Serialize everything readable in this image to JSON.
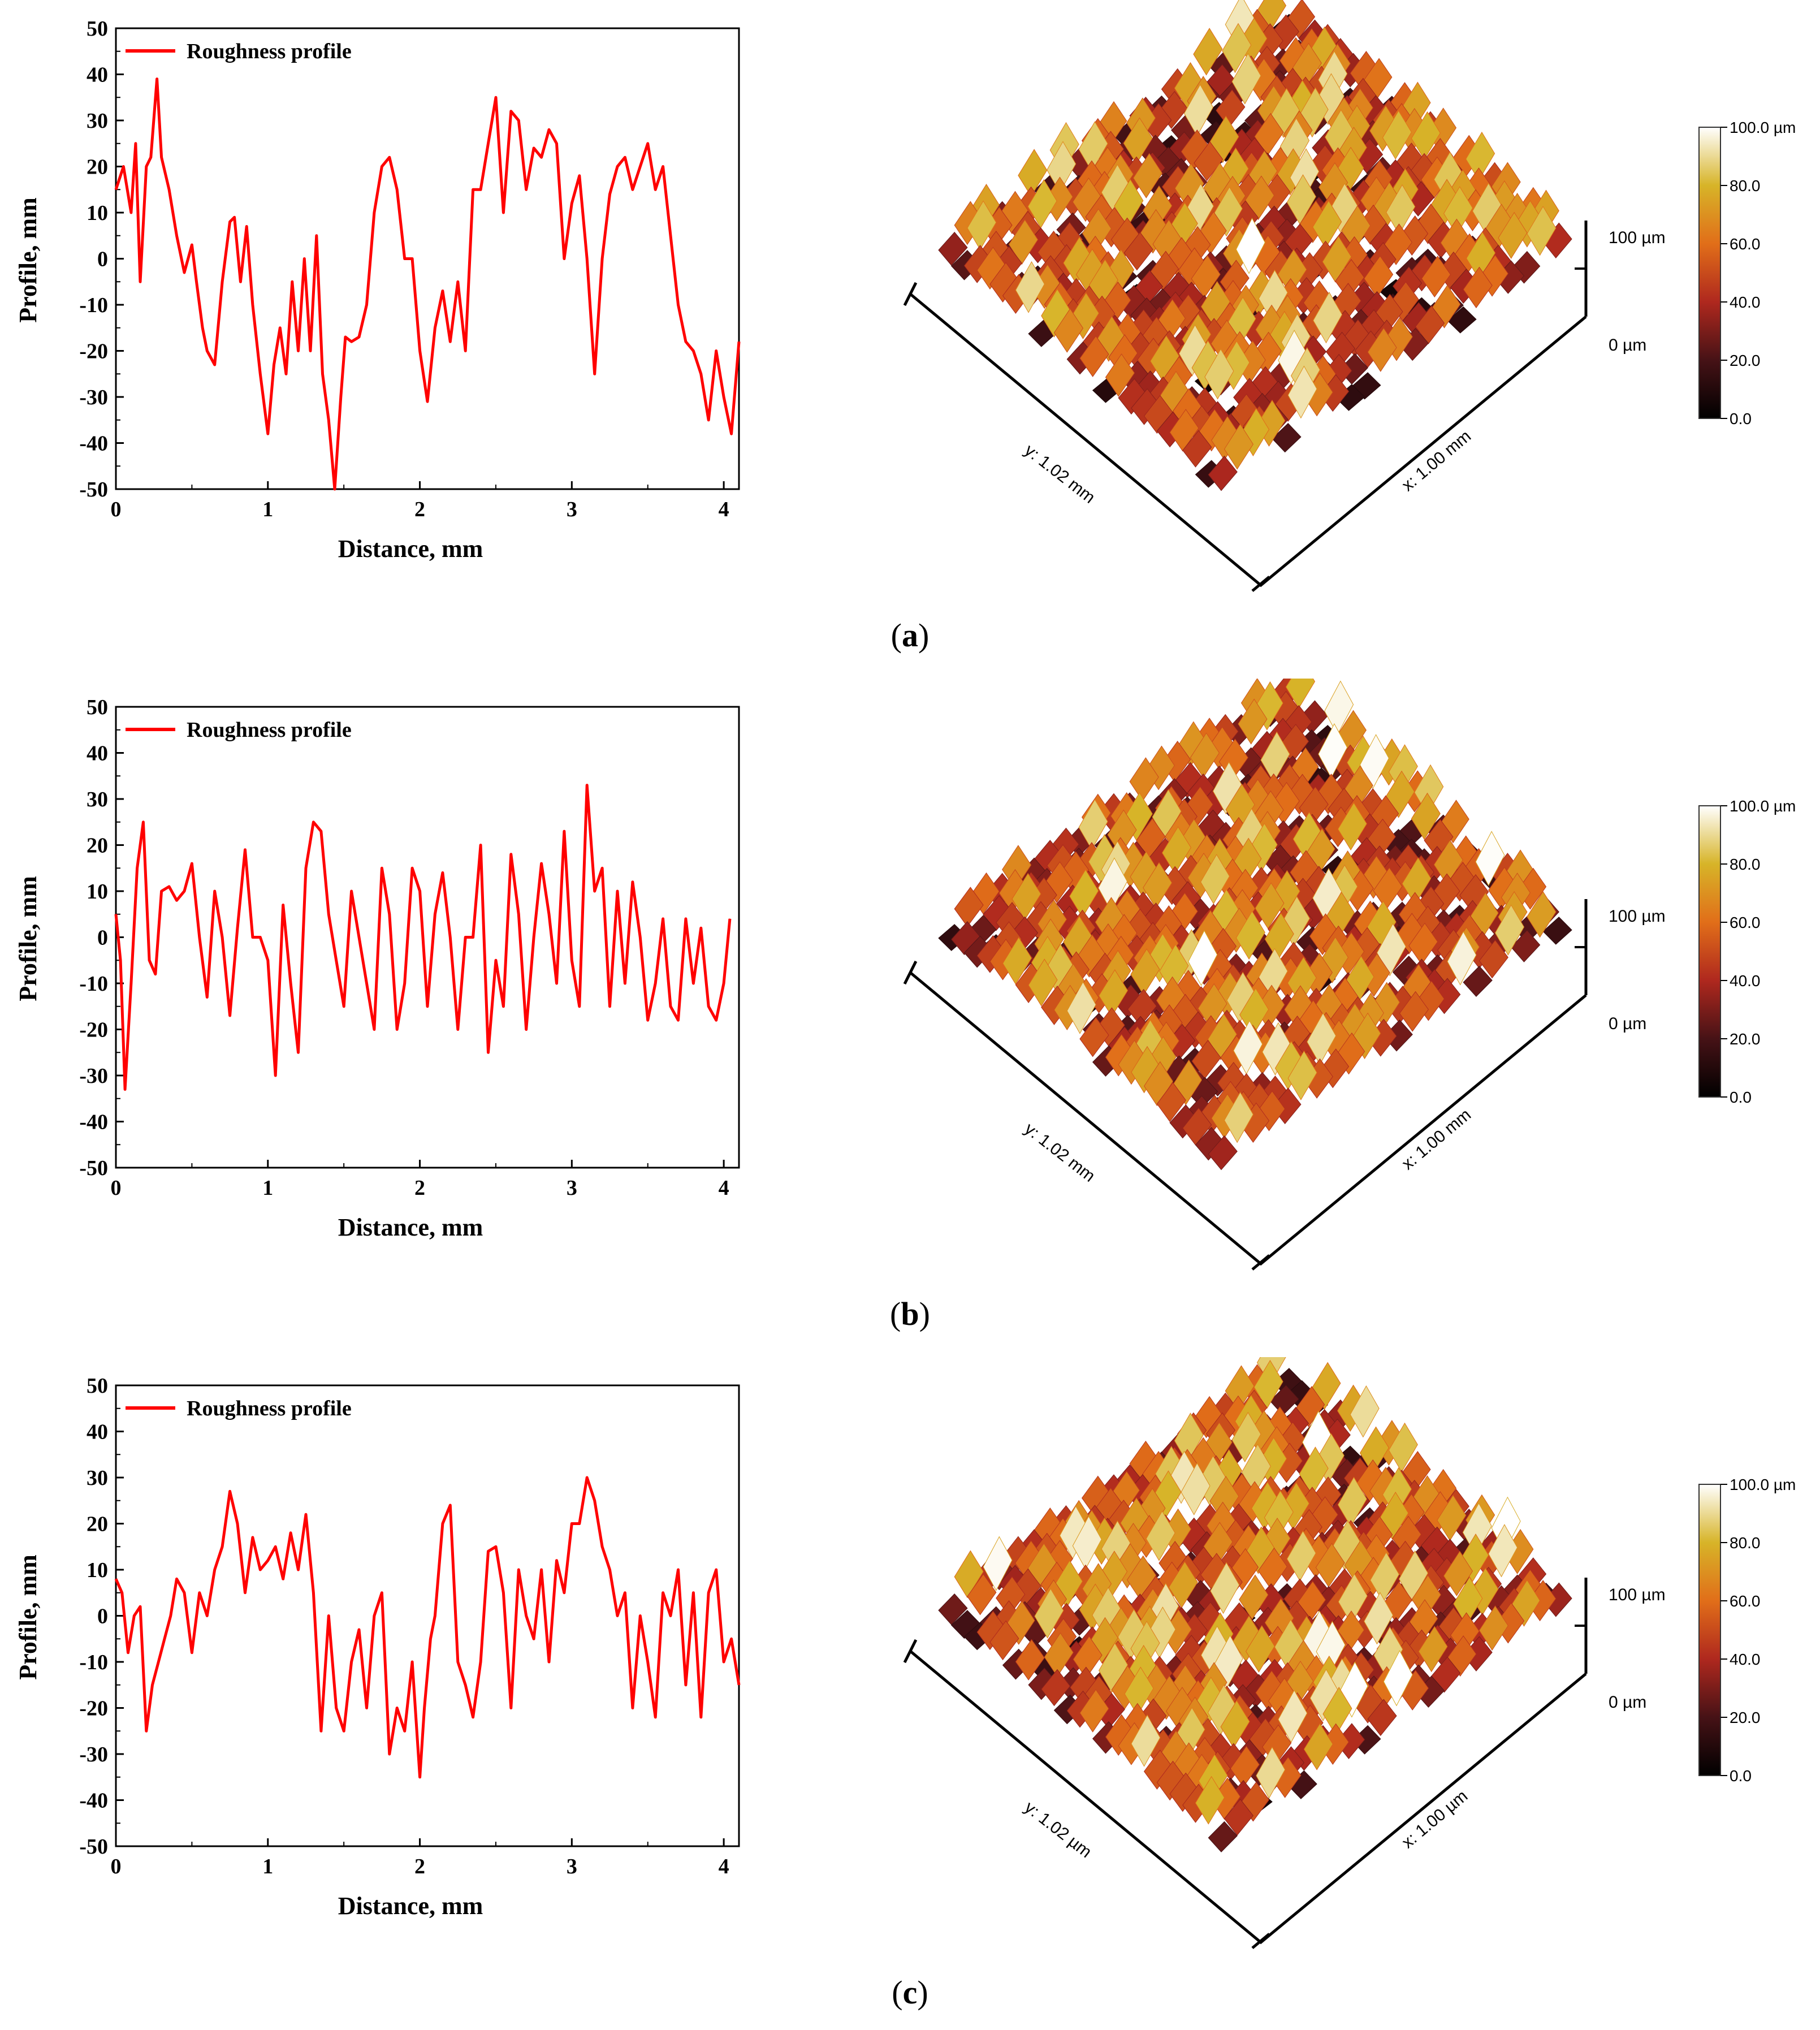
{
  "colors": {
    "line": "#ff0000",
    "axis": "#000000"
  },
  "chart_data": [
    {
      "panel": "(a)",
      "type": "line",
      "xlabel": "Distance, mm",
      "ylabel": "Profile, mm",
      "xlim": [
        0,
        4.1
      ],
      "ylim": [
        -50,
        50
      ],
      "xticks": [
        "0",
        "1",
        "2",
        "3",
        "4"
      ],
      "yticks": [
        "50",
        "40",
        "30",
        "20",
        "10",
        "0",
        "-10",
        "-20",
        "-30",
        "-40",
        "-50"
      ],
      "legend": "Roughness profile",
      "legend_position": "top-left",
      "series": [
        {
          "name": "Roughness profile",
          "x": [
            0,
            0.05,
            0.1,
            0.13,
            0.16,
            0.2,
            0.23,
            0.27,
            0.3,
            0.35,
            0.4,
            0.45,
            0.5,
            0.53,
            0.57,
            0.6,
            0.65,
            0.7,
            0.75,
            0.78,
            0.82,
            0.86,
            0.9,
            0.95,
            1.0,
            1.04,
            1.08,
            1.12,
            1.16,
            1.2,
            1.24,
            1.28,
            1.32,
            1.36,
            1.4,
            1.44,
            1.48,
            1.51,
            1.55,
            1.6,
            1.65,
            1.7,
            1.75,
            1.8,
            1.85,
            1.9,
            1.95,
            2.0,
            2.05,
            2.1,
            2.15,
            2.2,
            2.25,
            2.3,
            2.35,
            2.4,
            2.45,
            2.5,
            2.55,
            2.6,
            2.65,
            2.7,
            2.75,
            2.8,
            2.85,
            2.9,
            2.95,
            3.0,
            3.05,
            3.1,
            3.15,
            3.2,
            3.25,
            3.3,
            3.35,
            3.4,
            3.45,
            3.5,
            3.55,
            3.6,
            3.65,
            3.7,
            3.75,
            3.8,
            3.85,
            3.9,
            3.95,
            4.0,
            4.05,
            4.1
          ],
          "y": [
            15,
            20,
            10,
            25,
            -5,
            20,
            22,
            39,
            22,
            15,
            5,
            -3,
            3,
            -5,
            -15,
            -20,
            -23,
            -5,
            8,
            9,
            -5,
            7,
            -10,
            -25,
            -38,
            -23,
            -15,
            -25,
            -5,
            -20,
            0,
            -20,
            5,
            -25,
            -35,
            -50,
            -30,
            -17,
            -18,
            -17,
            -10,
            10,
            20,
            22,
            15,
            0,
            0,
            -20,
            -31,
            -15,
            -7,
            -18,
            -5,
            -20,
            15,
            15,
            25,
            35,
            10,
            32,
            30,
            15,
            24,
            22,
            28,
            25,
            0,
            12,
            18,
            0,
            -25,
            0,
            14,
            20,
            22,
            15,
            20,
            25,
            15,
            20,
            5,
            -10,
            -18,
            -20,
            -25,
            -35,
            -20,
            -30,
            -38,
            -18
          ]
        }
      ]
    },
    {
      "panel": "(b)",
      "type": "line",
      "xlabel": "Distance, mm",
      "ylabel": "Profile, mm",
      "xlim": [
        0,
        4.1
      ],
      "ylim": [
        -50,
        50
      ],
      "xticks": [
        "0",
        "1",
        "2",
        "3",
        "4"
      ],
      "yticks": [
        "50",
        "40",
        "30",
        "20",
        "10",
        "0",
        "-10",
        "-20",
        "-30",
        "-40",
        "-50"
      ],
      "legend": "Roughness profile",
      "legend_position": "top-left",
      "series": [
        {
          "name": "Roughness profile",
          "x": [
            0,
            0.03,
            0.06,
            0.1,
            0.14,
            0.18,
            0.22,
            0.26,
            0.3,
            0.35,
            0.4,
            0.45,
            0.5,
            0.55,
            0.6,
            0.65,
            0.7,
            0.75,
            0.8,
            0.85,
            0.9,
            0.95,
            1.0,
            1.05,
            1.1,
            1.15,
            1.2,
            1.25,
            1.3,
            1.35,
            1.4,
            1.45,
            1.5,
            1.55,
            1.6,
            1.65,
            1.7,
            1.75,
            1.8,
            1.85,
            1.9,
            1.95,
            2.0,
            2.05,
            2.1,
            2.15,
            2.2,
            2.25,
            2.3,
            2.35,
            2.4,
            2.45,
            2.5,
            2.55,
            2.6,
            2.65,
            2.7,
            2.75,
            2.8,
            2.85,
            2.9,
            2.95,
            3.0,
            3.05,
            3.1,
            3.15,
            3.2,
            3.25,
            3.3,
            3.35,
            3.4,
            3.45,
            3.5,
            3.55,
            3.6,
            3.65,
            3.7,
            3.75,
            3.8,
            3.85,
            3.9,
            3.95,
            4.0,
            4.04
          ],
          "y": [
            5,
            -5,
            -33,
            -10,
            15,
            25,
            -5,
            -8,
            10,
            11,
            8,
            10,
            16,
            0,
            -13,
            10,
            0,
            -17,
            2,
            19,
            0,
            0,
            -5,
            -30,
            7,
            -10,
            -25,
            15,
            25,
            23,
            5,
            -5,
            -15,
            10,
            0,
            -10,
            -20,
            15,
            5,
            -20,
            -10,
            15,
            10,
            -15,
            5,
            14,
            0,
            -20,
            0,
            0,
            20,
            -25,
            -5,
            -15,
            18,
            5,
            -20,
            0,
            16,
            5,
            -10,
            23,
            -5,
            -15,
            33,
            10,
            15,
            -15,
            10,
            -10,
            12,
            0,
            -18,
            -10,
            4,
            -15,
            -18,
            4,
            -10,
            2,
            -15,
            -18,
            -10,
            4
          ]
        }
      ]
    },
    {
      "panel": "(c)",
      "type": "line",
      "xlabel": "Distance, mm",
      "ylabel": "Profile, mm",
      "xlim": [
        0,
        4.1
      ],
      "ylim": [
        -50,
        50
      ],
      "xticks": [
        "0",
        "1",
        "2",
        "3",
        "4"
      ],
      "yticks": [
        "50",
        "40",
        "30",
        "20",
        "10",
        "0",
        "-10",
        "-20",
        "-30",
        "-40",
        "-50"
      ],
      "legend": "Roughness profile",
      "legend_position": "top-left",
      "series": [
        {
          "name": "Roughness profile",
          "x": [
            0,
            0.04,
            0.08,
            0.12,
            0.16,
            0.2,
            0.24,
            0.28,
            0.32,
            0.36,
            0.4,
            0.45,
            0.5,
            0.55,
            0.6,
            0.65,
            0.7,
            0.75,
            0.8,
            0.85,
            0.9,
            0.95,
            1.0,
            1.05,
            1.1,
            1.15,
            1.2,
            1.25,
            1.3,
            1.35,
            1.4,
            1.45,
            1.5,
            1.55,
            1.6,
            1.65,
            1.7,
            1.75,
            1.8,
            1.85,
            1.9,
            1.95,
            2.0,
            2.03,
            2.07,
            2.1,
            2.15,
            2.2,
            2.25,
            2.3,
            2.35,
            2.4,
            2.45,
            2.5,
            2.55,
            2.6,
            2.65,
            2.7,
            2.75,
            2.8,
            2.85,
            2.9,
            2.95,
            3.0,
            3.05,
            3.1,
            3.15,
            3.2,
            3.25,
            3.3,
            3.35,
            3.4,
            3.45,
            3.5,
            3.55,
            3.6,
            3.65,
            3.7,
            3.75,
            3.8,
            3.85,
            3.9,
            3.95,
            4.0,
            4.05,
            4.1
          ],
          "y": [
            8,
            5,
            -8,
            0,
            2,
            -25,
            -15,
            -10,
            -5,
            0,
            8,
            5,
            -8,
            5,
            0,
            10,
            15,
            27,
            20,
            5,
            17,
            10,
            12,
            15,
            8,
            18,
            10,
            22,
            5,
            -25,
            0,
            -20,
            -25,
            -10,
            -3,
            -20,
            0,
            5,
            -30,
            -20,
            -25,
            -10,
            -35,
            -20,
            -5,
            0,
            20,
            24,
            -10,
            -15,
            -22,
            -10,
            14,
            15,
            5,
            -20,
            10,
            0,
            -5,
            10,
            -10,
            12,
            5,
            20,
            20,
            30,
            25,
            15,
            10,
            0,
            5,
            -20,
            0,
            -10,
            -22,
            5,
            0,
            10,
            -15,
            5,
            -22,
            5,
            10,
            -10,
            -5,
            -15
          ]
        }
      ]
    }
  ],
  "surfaces": [
    {
      "y_axis_label": "y: 1.02 mm",
      "x_axis_label": "x: 1.00 mm",
      "z_top": "100 µm",
      "z_bottom": "0 µm",
      "colorbar_ticks": [
        "100.0 µm",
        "80.0",
        "60.0",
        "40.0",
        "20.0",
        "0.0"
      ]
    },
    {
      "y_axis_label": "y: 1.02 mm",
      "x_axis_label": "x: 1.00 mm",
      "z_top": "100 µm",
      "z_bottom": "0 µm",
      "colorbar_ticks": [
        "100.0 µm",
        "80.0",
        "60.0",
        "40.0",
        "20.0",
        "0.0"
      ]
    },
    {
      "y_axis_label": "y: 1.02 µm",
      "x_axis_label": "x: 1.00 µm",
      "z_top": "100 µm",
      "z_bottom": "0 µm",
      "colorbar_ticks": [
        "100.0 µm",
        "80.0",
        "60.0",
        "40.0",
        "20.0",
        "0.0"
      ]
    }
  ],
  "panel_labels": [
    {
      "prefix": "(",
      "letter": "a",
      "suffix": ")"
    },
    {
      "prefix": "(",
      "letter": "b",
      "suffix": ")"
    },
    {
      "prefix": "(",
      "letter": "c",
      "suffix": ")"
    }
  ]
}
